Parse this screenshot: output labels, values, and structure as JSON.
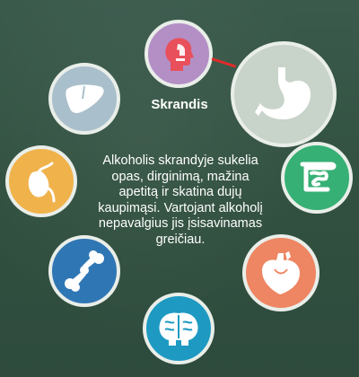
{
  "selected_organ": {
    "label": "Skrandis",
    "description": "Alkoholis skrandyje sukelia opas, dirginimą, mažina apetitą ir skatina dujų kaupimąsi. Vartojant alkoholį nepavalgius jis įsisavinamas greičiau."
  },
  "organs": [
    {
      "name": "head",
      "icon": "head-profile-icon",
      "color": "#b38fc6"
    },
    {
      "name": "liver",
      "icon": "liver-icon",
      "color": "#a9bfcb"
    },
    {
      "name": "stomach",
      "icon": "stomach-icon",
      "color": "#c8d3c9",
      "selected": true
    },
    {
      "name": "gallbladder",
      "icon": "gallbladder-icon",
      "color": "#f0b24a"
    },
    {
      "name": "intestines",
      "icon": "intestines-icon",
      "color": "#36b074"
    },
    {
      "name": "joint",
      "icon": "bone-joint-icon",
      "color": "#2f76b4"
    },
    {
      "name": "heart",
      "icon": "heart-icon",
      "color": "#ee8663"
    },
    {
      "name": "brain",
      "icon": "brain-icon",
      "color": "#1e9ac2"
    }
  ],
  "colors": {
    "background": "#345346",
    "connector": "#e02b2b",
    "icon_fill": "#ffffff",
    "head_accent": "#e8505b"
  }
}
